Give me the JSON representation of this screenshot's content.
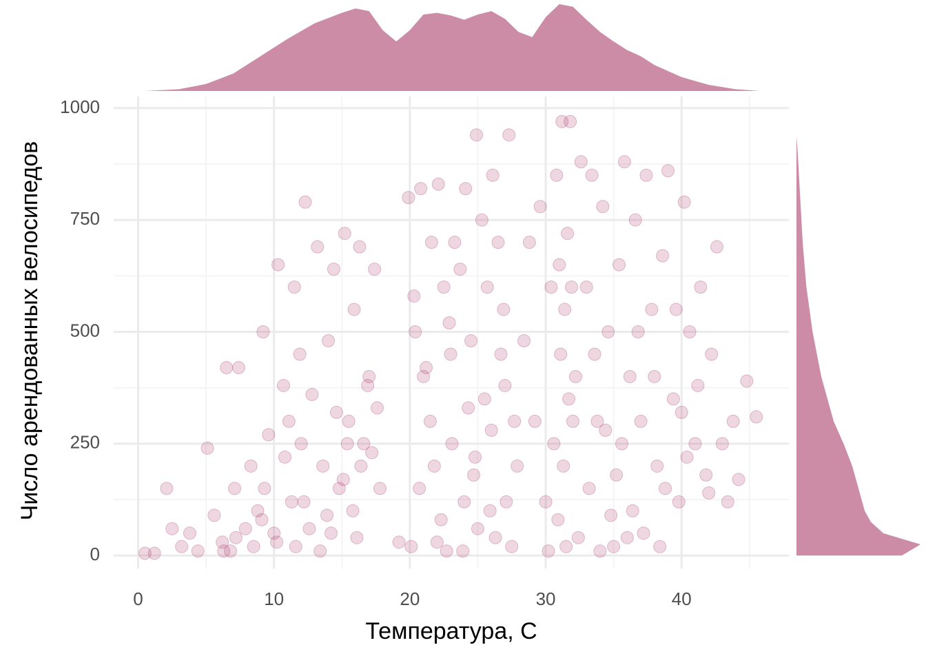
{
  "chart_data": {
    "type": "scatter",
    "x_label": "Температура, С",
    "y_label": "Число арендованных велосипедов",
    "color": "#b04a74",
    "density_color": "#cc8ca6",
    "xlim": [
      -1.8,
      47.9
    ],
    "ylim": [
      -29,
      1026
    ],
    "xticks": [
      0,
      10,
      20,
      30,
      40
    ],
    "yticks": [
      0,
      250,
      500,
      750,
      1000
    ],
    "x_minor_ticks": [
      5,
      15,
      25,
      35,
      45
    ],
    "y_minor_ticks": [
      125,
      375,
      625,
      875
    ],
    "grid": true,
    "x": [
      0.5,
      1.2,
      2.1,
      2.5,
      3.2,
      3.8,
      4.4,
      5.1,
      5.6,
      6.2,
      6.5,
      6.8,
      7.1,
      7.4,
      7.9,
      8.3,
      8.8,
      9.2,
      9.6,
      10.0,
      10.3,
      10.7,
      11.1,
      11.5,
      11.9,
      12.3,
      12.2,
      12.8,
      13.2,
      13.6,
      14.0,
      14.4,
      14.8,
      15.2,
      15.5,
      15.9,
      16.3,
      16.6,
      17.0,
      17.4,
      17.8,
      6.3,
      7.2,
      8.5,
      9.1,
      10.2,
      11.3,
      12.6,
      13.9,
      15.1,
      16.1,
      17.2,
      9.3,
      10.8,
      12.0,
      13.4,
      14.6,
      15.8,
      16.9,
      11.6,
      14.2,
      15.4,
      16.4,
      17.6,
      19.9,
      20.3,
      20.8,
      21.2,
      21.6,
      22.1,
      22.5,
      22.9,
      23.3,
      23.7,
      24.1,
      24.5,
      24.9,
      25.3,
      25.7,
      26.1,
      26.5,
      26.9,
      27.3,
      27.7,
      20.1,
      20.7,
      21.5,
      22.3,
      23.1,
      23.9,
      24.7,
      25.5,
      26.3,
      27.1,
      27.9,
      21.0,
      22.0,
      23.0,
      24.0,
      25.0,
      26.0,
      27.0,
      20.4,
      21.8,
      22.7,
      24.3,
      25.9,
      26.7,
      19.2,
      24.8,
      27.5,
      28.4,
      28.8,
      29.2,
      29.6,
      30.0,
      30.4,
      30.8,
      31.0,
      31.2,
      31.4,
      31.6,
      31.8,
      32.2,
      32.6,
      33.0,
      33.4,
      33.8,
      34.2,
      34.6,
      35.0,
      35.4,
      35.8,
      36.2,
      36.6,
      37.0,
      37.4,
      37.8,
      38.2,
      38.6,
      39.0,
      39.4,
      39.8,
      40.2,
      40.6,
      41.0,
      41.4,
      41.8,
      42.2,
      42.6,
      43.0,
      43.4,
      43.8,
      44.2,
      44.8,
      45.5,
      30.2,
      30.9,
      31.3,
      31.7,
      32.4,
      33.2,
      34.0,
      34.8,
      35.6,
      36.4,
      37.2,
      38.0,
      38.8,
      39.6,
      40.4,
      41.2,
      42.0,
      31.1,
      31.5,
      32.0,
      33.6,
      35.2,
      36.8,
      38.4,
      40.0,
      30.6,
      31.9,
      34.4,
      36.0
    ],
    "values": [
      5,
      5,
      150,
      60,
      20,
      50,
      10,
      240,
      90,
      30,
      420,
      10,
      150,
      420,
      60,
      200,
      100,
      500,
      270,
      50,
      650,
      380,
      300,
      600,
      450,
      790,
      120,
      360,
      690,
      200,
      480,
      640,
      150,
      720,
      300,
      550,
      690,
      250,
      400,
      640,
      150,
      10,
      40,
      20,
      80,
      30,
      120,
      60,
      90,
      170,
      40,
      230,
      150,
      220,
      250,
      10,
      320,
      100,
      380,
      20,
      50,
      250,
      200,
      330,
      800,
      580,
      820,
      420,
      700,
      830,
      600,
      520,
      700,
      640,
      820,
      480,
      940,
      750,
      600,
      850,
      700,
      550,
      940,
      300,
      20,
      150,
      300,
      80,
      250,
      10,
      180,
      350,
      40,
      120,
      200,
      400,
      30,
      450,
      120,
      60,
      280,
      380,
      500,
      200,
      10,
      330,
      100,
      450,
      30,
      220,
      20,
      480,
      700,
      300,
      780,
      120,
      600,
      850,
      650,
      970,
      550,
      720,
      970,
      400,
      880,
      600,
      850,
      300,
      780,
      500,
      20,
      650,
      880,
      400,
      750,
      300,
      850,
      550,
      200,
      670,
      860,
      350,
      120,
      790,
      500,
      250,
      600,
      180,
      450,
      690,
      250,
      120,
      300,
      170,
      390,
      310,
      10,
      80,
      200,
      350,
      40,
      150,
      10,
      90,
      250,
      100,
      50,
      400,
      150,
      550,
      220,
      380,
      140,
      450,
      20,
      300,
      450,
      180,
      500,
      20,
      320,
      250,
      600,
      280,
      40
    ],
    "x_density": {
      "x": [
        0.5,
        3,
        5,
        7,
        9,
        11,
        13,
        15,
        16,
        17,
        18,
        19,
        20,
        21,
        22,
        23,
        24,
        25,
        26,
        27,
        28,
        29,
        30,
        31,
        32,
        33,
        34,
        35,
        36,
        37,
        38,
        40,
        42,
        44,
        45.8
      ],
      "values": [
        0,
        0.02,
        0.08,
        0.2,
        0.4,
        0.6,
        0.78,
        0.9,
        0.95,
        0.92,
        0.7,
        0.57,
        0.7,
        0.88,
        0.9,
        0.87,
        0.82,
        0.88,
        0.92,
        0.83,
        0.68,
        0.62,
        0.85,
        1,
        0.97,
        0.82,
        0.68,
        0.57,
        0.47,
        0.4,
        0.3,
        0.16,
        0.07,
        0.02,
        0
      ]
    },
    "y_density": {
      "y": [
        0,
        25,
        50,
        75,
        100,
        150,
        200,
        250,
        300,
        400,
        500,
        600,
        700,
        800,
        900,
        938
      ],
      "values": [
        0.85,
        1,
        0.7,
        0.6,
        0.55,
        0.5,
        0.45,
        0.38,
        0.3,
        0.2,
        0.13,
        0.08,
        0.05,
        0.03,
        0.01,
        0
      ]
    }
  }
}
